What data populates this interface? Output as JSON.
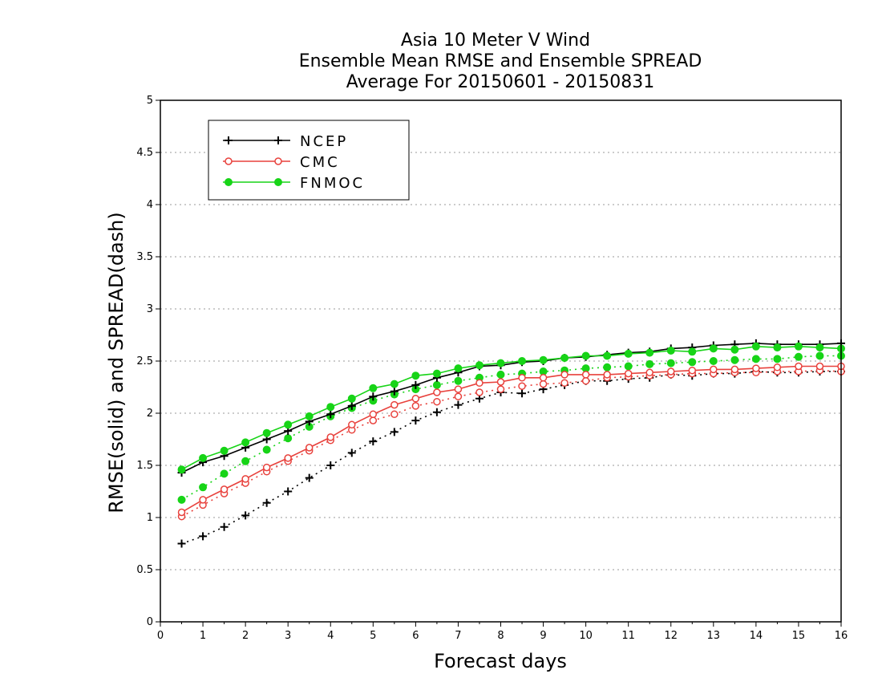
{
  "chart_data": {
    "type": "line",
    "title_lines": [
      "Asia 10 Meter V Wind",
      "Ensemble Mean RMSE and Ensemble SPREAD",
      "Average For 20150601 - 20150831"
    ],
    "xlabel": "Forecast days",
    "ylabel": "RMSE(solid) and SPREAD(dash)",
    "xlim": [
      0,
      16
    ],
    "ylim": [
      0,
      5
    ],
    "x_ticks": [
      "0",
      "1",
      "2",
      "3",
      "4",
      "5",
      "6",
      "7",
      "8",
      "9",
      "10",
      "11",
      "12",
      "13",
      "14",
      "15",
      "16"
    ],
    "y_ticks": [
      "0",
      "0.5",
      "1",
      "1.5",
      "2",
      "2.5",
      "3",
      "3.5",
      "4",
      "4.5",
      "5"
    ],
    "grid": "horizontal dotted",
    "legend_position": "top-left",
    "x": [
      0.5,
      1,
      1.5,
      2,
      2.5,
      3,
      3.5,
      4,
      4.5,
      5,
      5.5,
      6,
      6.5,
      7,
      7.5,
      8,
      8.5,
      9,
      9.5,
      10,
      10.5,
      11,
      11.5,
      12,
      12.5,
      13,
      13.5,
      14,
      14.5,
      15,
      15.5,
      16
    ],
    "series": [
      {
        "name": "NCEP",
        "color": "#000000",
        "marker": "plus",
        "rmse": [
          1.43,
          1.53,
          1.59,
          1.67,
          1.75,
          1.83,
          1.92,
          1.99,
          2.07,
          2.16,
          2.21,
          2.27,
          2.34,
          2.39,
          2.45,
          2.46,
          2.49,
          2.5,
          2.53,
          2.54,
          2.56,
          2.58,
          2.59,
          2.62,
          2.63,
          2.65,
          2.66,
          2.67,
          2.66,
          2.66,
          2.66,
          2.67
        ],
        "spread": [
          0.75,
          0.82,
          0.91,
          1.02,
          1.14,
          1.25,
          1.38,
          1.5,
          1.62,
          1.73,
          1.82,
          1.93,
          2.01,
          2.08,
          2.14,
          2.2,
          2.19,
          2.23,
          2.27,
          2.31,
          2.31,
          2.33,
          2.34,
          2.37,
          2.36,
          2.38,
          2.38,
          2.4,
          2.39,
          2.39,
          2.4,
          2.4
        ]
      },
      {
        "name": "CMC",
        "color": "#e8413c",
        "marker": "open-circle",
        "rmse": [
          1.05,
          1.17,
          1.27,
          1.37,
          1.48,
          1.57,
          1.67,
          1.77,
          1.89,
          1.99,
          2.08,
          2.14,
          2.2,
          2.23,
          2.29,
          2.3,
          2.34,
          2.34,
          2.37,
          2.37,
          2.37,
          2.38,
          2.39,
          2.4,
          2.41,
          2.42,
          2.42,
          2.43,
          2.44,
          2.45,
          2.45,
          2.45
        ],
        "spread": [
          1.01,
          1.12,
          1.23,
          1.33,
          1.44,
          1.54,
          1.64,
          1.74,
          1.84,
          1.93,
          1.99,
          2.07,
          2.11,
          2.16,
          2.2,
          2.23,
          2.26,
          2.28,
          2.29,
          2.31,
          2.34,
          2.35,
          2.36,
          2.37,
          2.38,
          2.38,
          2.39,
          2.39,
          2.4,
          2.4,
          2.41,
          2.4
        ]
      },
      {
        "name": "FNMOC",
        "color": "#17d417",
        "marker": "filled-circle",
        "rmse": [
          1.46,
          1.57,
          1.64,
          1.72,
          1.81,
          1.89,
          1.97,
          2.06,
          2.14,
          2.24,
          2.28,
          2.36,
          2.38,
          2.43,
          2.46,
          2.48,
          2.5,
          2.51,
          2.53,
          2.55,
          2.55,
          2.57,
          2.58,
          2.6,
          2.59,
          2.62,
          2.61,
          2.64,
          2.63,
          2.64,
          2.63,
          2.62
        ],
        "spread": [
          1.17,
          1.29,
          1.42,
          1.54,
          1.65,
          1.76,
          1.87,
          1.97,
          2.05,
          2.12,
          2.18,
          2.23,
          2.27,
          2.31,
          2.34,
          2.37,
          2.38,
          2.4,
          2.41,
          2.43,
          2.44,
          2.45,
          2.47,
          2.48,
          2.49,
          2.5,
          2.51,
          2.52,
          2.52,
          2.54,
          2.55,
          2.55
        ]
      }
    ]
  }
}
